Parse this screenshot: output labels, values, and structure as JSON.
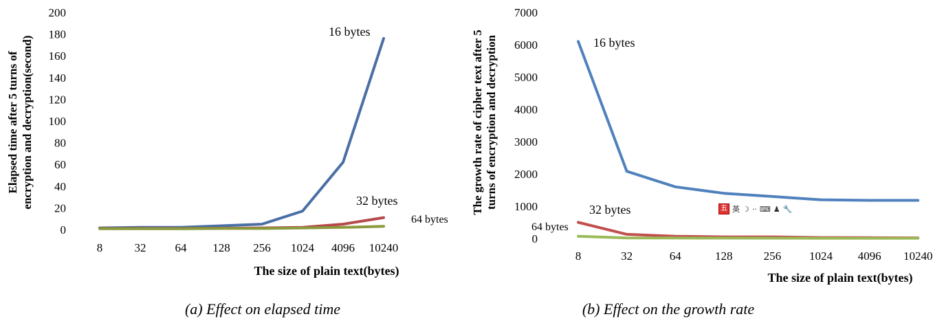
{
  "chart_data": [
    {
      "type": "line",
      "categories": [
        "8",
        "32",
        "64",
        "128",
        "256",
        "1024",
        "4096",
        "10240"
      ],
      "ylim": [
        0,
        200
      ],
      "yticks": [
        "0",
        "20",
        "40",
        "60",
        "80",
        "100",
        "120",
        "140",
        "160",
        "180",
        "200"
      ],
      "ylabel_line1": "Elapsed time after 5 turns of",
      "ylabel_line2": "encryption and decryption(second)",
      "xlabel": "The size of plain text(bytes)",
      "caption": "(a) Effect on elapsed time",
      "grid": false,
      "series": [
        {
          "name": "16 bytes",
          "color": "#4a6fa5",
          "values": [
            1.5,
            2,
            2,
            3.5,
            5,
            17,
            62,
            176
          ]
        },
        {
          "name": "32 bytes",
          "color": "#b5484a",
          "values": [
            1,
            1,
            1,
            1.2,
            1.5,
            2,
            5,
            11
          ]
        },
        {
          "name": "64 bytes",
          "color": "#8a9a3d",
          "values": [
            0.8,
            0.8,
            0.8,
            1,
            1,
            1.5,
            2,
            3
          ]
        }
      ]
    },
    {
      "type": "line",
      "categories": [
        "8",
        "32",
        "64",
        "128",
        "256",
        "1024",
        "4096",
        "10240"
      ],
      "ylim": [
        0,
        7000
      ],
      "yticks": [
        "0",
        "1000",
        "2000",
        "3000",
        "4000",
        "5000",
        "6000",
        "7000"
      ],
      "ylabel_line1": "The growth rate of cipher text after 5",
      "ylabel_line2": "turns of encryption and decryption",
      "xlabel": "The size of plain text(bytes)",
      "caption": "(b) Effect on the growth rate",
      "grid": false,
      "series": [
        {
          "name": "16 bytes",
          "color": "#4f81bd",
          "values": [
            6100,
            2080,
            1600,
            1400,
            1300,
            1200,
            1180,
            1180
          ]
        },
        {
          "name": "32 bytes",
          "color": "#c0504d",
          "values": [
            500,
            130,
            70,
            50,
            50,
            30,
            25,
            20
          ]
        },
        {
          "name": "64 bytes",
          "color": "#9bbb59",
          "values": [
            70,
            20,
            15,
            12,
            10,
            8,
            8,
            8
          ]
        }
      ]
    }
  ],
  "ime_toolbar": {
    "logo": "五",
    "lang": "英",
    "moon_icon": "☽",
    "dots": "··",
    "keyboard_icon": "⌨",
    "user_icon": "♟",
    "wrench_icon": "🔧"
  }
}
